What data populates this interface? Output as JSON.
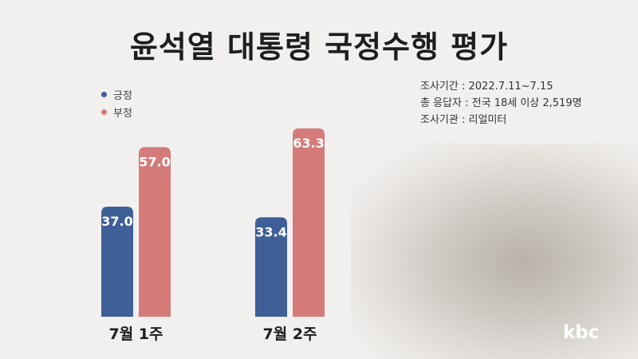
{
  "title": "윤석열 대통령 국정수행 평가",
  "legend": [
    {
      "label": "긍정",
      "color": "#3f5f97"
    },
    {
      "label": "부정",
      "color": "#d47b79"
    }
  ],
  "survey_info": [
    {
      "label": "조사기간",
      "value": "2022.7.11~7.15"
    },
    {
      "label": "총 응답자",
      "value": "전국 18세 이상 2,519명"
    },
    {
      "label": "조사기관",
      "value": "리얼미터"
    }
  ],
  "logo": "kbc",
  "chart_data": {
    "type": "bar",
    "categories": [
      "7월 1주",
      "7월 2주"
    ],
    "series": [
      {
        "name": "긍정",
        "values": [
          37.0,
          33.4
        ],
        "color": "#3f5f97"
      },
      {
        "name": "부정",
        "values": [
          57.0,
          63.3
        ],
        "color": "#d47b79"
      }
    ],
    "data_labels": [
      [
        "37.0",
        "33.4"
      ],
      [
        "57.0",
        "63.3"
      ]
    ],
    "title": "윤석열 대통령 국정수행 평가",
    "ylim": [
      0,
      70
    ],
    "grid": false,
    "legend_position": "top-left"
  }
}
